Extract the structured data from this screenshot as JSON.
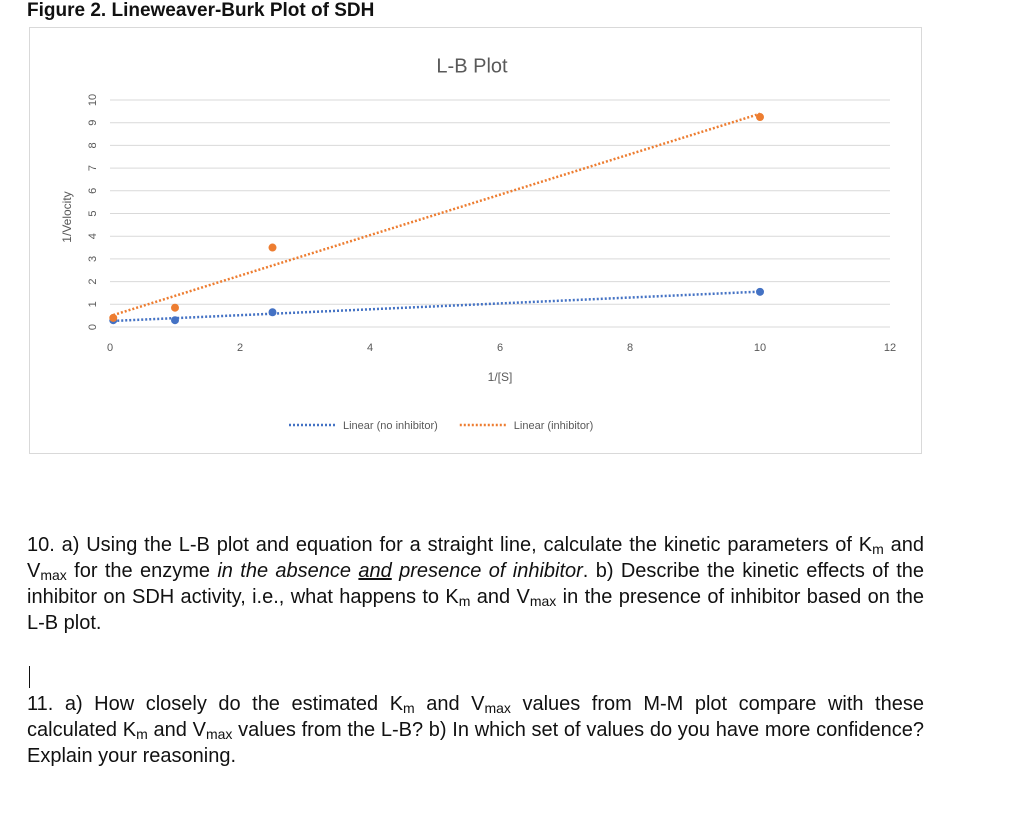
{
  "figure_caption": "Figure 2. Lineweaver-Burk Plot of SDH",
  "chart_data": {
    "type": "scatter",
    "title": "L-B Plot",
    "x_label": "1/[S]",
    "y_label": "1/Velocity",
    "xlim": [
      0,
      12
    ],
    "xticks": [
      0,
      2,
      4,
      6,
      8,
      10,
      12
    ],
    "ylim": [
      0,
      10
    ],
    "yticks": [
      0,
      1,
      2,
      3,
      4,
      5,
      6,
      7,
      8,
      9,
      10
    ],
    "grid": true,
    "trendline": "linear",
    "legend": "bottom",
    "series": [
      {
        "name": "Linear (no inhibitor)",
        "color": "#4472c4",
        "x": [
          0.05,
          1,
          2.5,
          10
        ],
        "values": [
          0.3,
          0.3,
          0.65,
          1.55
        ]
      },
      {
        "name": "Linear (inhibitor)",
        "color": "#ed7d31",
        "x": [
          0.05,
          1,
          2.5,
          10
        ],
        "values": [
          0.4,
          0.85,
          3.5,
          9.25
        ]
      }
    ]
  },
  "questions": [
    [
      "10. a) Using the L-B plot and equation for a straight line, calculate the kinetic parameters of K",
      "m",
      " and V",
      "max",
      " for the enzyme ",
      "in the absence ",
      "and",
      " presence of inhibitor",
      ". b) Describe the kinetic effects of the inhibitor on SDH activity, i.e., what happens to K",
      "m",
      " and V",
      "max",
      " in the presence of inhibitor based on the L-B plot."
    ],
    [
      "11. a) How closely do the estimated K",
      "m",
      " and V",
      "max",
      " values from M-M plot compare with these calculated K",
      "m",
      " and V",
      "max",
      " values from the L-B?  b) In which set of values do you have more confidence? Explain your reasoning."
    ]
  ]
}
